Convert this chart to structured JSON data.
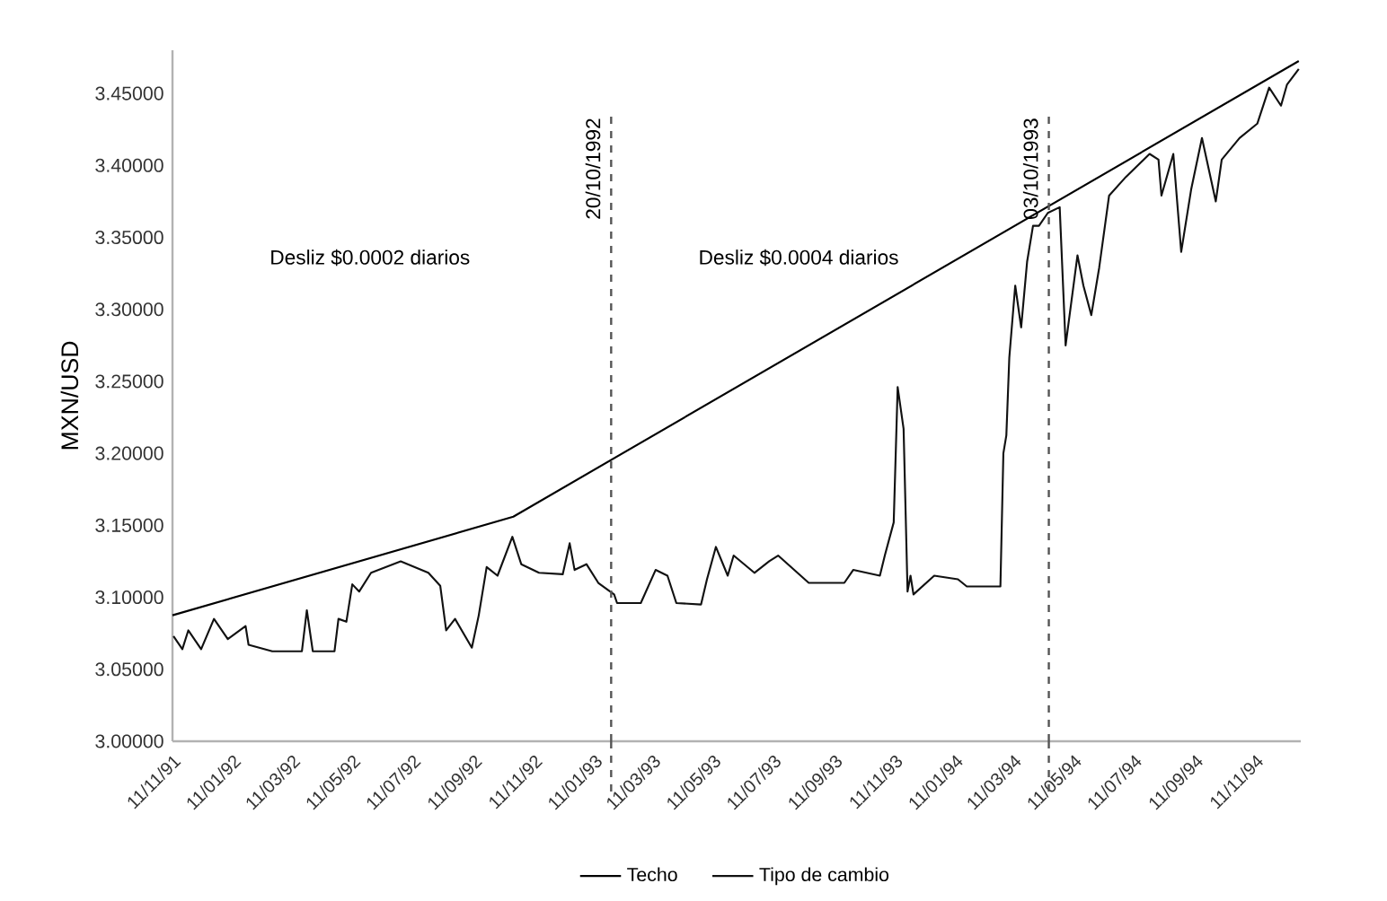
{
  "chart_data": {
    "type": "line",
    "ylabel": "MXN/USD",
    "xlim": [
      "1991-11-11",
      "1994-12-27"
    ],
    "ylim": [
      3.0,
      3.48
    ],
    "xticks": [
      {
        "value": "1991-11-11",
        "label": "11/11/91"
      },
      {
        "value": "1992-01-11",
        "label": "11/01/92"
      },
      {
        "value": "1992-03-11",
        "label": "11/03/92"
      },
      {
        "value": "1992-05-11",
        "label": "11/05/92"
      },
      {
        "value": "1992-07-11",
        "label": "11/07/92"
      },
      {
        "value": "1992-09-11",
        "label": "11/09/92"
      },
      {
        "value": "1992-11-11",
        "label": "11/11/92"
      },
      {
        "value": "1993-01-11",
        "label": "11/01/93"
      },
      {
        "value": "1993-03-11",
        "label": "11/03/93"
      },
      {
        "value": "1993-05-11",
        "label": "11/05/93"
      },
      {
        "value": "1993-07-11",
        "label": "11/07/93"
      },
      {
        "value": "1993-09-11",
        "label": "11/09/93"
      },
      {
        "value": "1993-11-11",
        "label": "11/11/93"
      },
      {
        "value": "1994-01-11",
        "label": "11/01/94"
      },
      {
        "value": "1994-03-11",
        "label": "11/03/94"
      },
      {
        "value": "1994-05-11",
        "label": "11/05/94"
      },
      {
        "value": "1994-07-11",
        "label": "11/07/94"
      },
      {
        "value": "1994-09-11",
        "label": "11/09/94"
      },
      {
        "value": "1994-11-11",
        "label": "11/11/94"
      }
    ],
    "yticks": [
      {
        "value": 3.0,
        "label": "3.00000"
      },
      {
        "value": 3.05,
        "label": "3.05000"
      },
      {
        "value": 3.1,
        "label": "3.10000"
      },
      {
        "value": 3.15,
        "label": "3.15000"
      },
      {
        "value": 3.2,
        "label": "3.20000"
      },
      {
        "value": 3.25,
        "label": "3.25000"
      },
      {
        "value": 3.3,
        "label": "3.30000"
      },
      {
        "value": 3.35,
        "label": "3.35000"
      },
      {
        "value": 3.4,
        "label": "3.40000"
      },
      {
        "value": 3.45,
        "label": "3.45000"
      }
    ],
    "legend": "bottom",
    "series": [
      {
        "name": "Techo",
        "color": "#000000",
        "x": [
          "1991-11-11",
          "1992-10-21",
          "1994-12-25"
        ],
        "values": [
          3.0875,
          3.156,
          3.4725
        ]
      },
      {
        "name": "Tipo de cambio",
        "color": "#111111",
        "x": [
          "1991-11-12",
          "1991-11-21",
          "1991-11-27",
          "1991-12-10",
          "1991-12-23",
          "1992-01-06",
          "1992-01-24",
          "1992-01-27",
          "1992-02-20",
          "1992-03-21",
          "1992-03-26",
          "1992-04-01",
          "1992-04-23",
          "1992-04-27",
          "1992-05-05",
          "1992-05-11",
          "1992-05-18",
          "1992-05-30",
          "1992-06-29",
          "1992-07-27",
          "1992-08-08",
          "1992-08-14",
          "1992-08-23",
          "1992-09-09",
          "1992-09-16",
          "1992-09-24",
          "1992-10-05",
          "1992-10-20",
          "1992-10-29",
          "1992-11-16",
          "1992-12-10",
          "1992-12-17",
          "1992-12-22",
          "1993-01-03",
          "1993-01-15",
          "1993-01-31",
          "1993-02-03",
          "1993-02-27",
          "1993-03-14",
          "1993-03-26",
          "1993-04-04",
          "1993-04-29",
          "1993-05-05",
          "1993-05-14",
          "1993-05-26",
          "1993-06-01",
          "1993-06-22",
          "1993-07-07",
          "1993-07-16",
          "1993-08-16",
          "1993-09-21",
          "1993-09-30",
          "1993-10-27",
          "1993-11-01",
          "1993-11-10",
          "1993-11-14",
          "1993-11-20",
          "1993-11-24",
          "1993-11-27",
          "1993-11-30",
          "1993-12-21",
          "1994-01-14",
          "1994-01-23",
          "1994-02-26",
          "1994-03-01",
          "1994-03-04",
          "1994-03-07",
          "1994-03-13",
          "1994-03-19",
          "1994-03-25",
          "1994-03-31",
          "1994-04-06",
          "1994-04-15",
          "1994-04-27",
          "1994-05-03",
          "1994-05-15",
          "1994-05-21",
          "1994-05-29",
          "1994-06-06",
          "1994-06-16",
          "1994-07-03",
          "1994-07-27",
          "1994-08-05",
          "1994-08-08",
          "1994-08-20",
          "1994-08-28",
          "1994-09-07",
          "1994-09-18",
          "1994-10-02",
          "1994-10-08",
          "1994-10-26",
          "1994-11-13",
          "1994-11-25",
          "1994-12-07",
          "1994-12-13",
          "1994-12-25"
        ],
        "values": [
          3.073,
          3.064,
          3.077,
          3.064,
          3.085,
          3.071,
          3.08,
          3.067,
          3.0625,
          3.0625,
          3.091,
          3.0625,
          3.0625,
          3.085,
          3.083,
          3.109,
          3.104,
          3.117,
          3.125,
          3.117,
          3.108,
          3.077,
          3.085,
          3.065,
          3.0875,
          3.121,
          3.115,
          3.142,
          3.123,
          3.117,
          3.116,
          3.1375,
          3.119,
          3.123,
          3.11,
          3.102,
          3.096,
          3.096,
          3.119,
          3.115,
          3.096,
          3.095,
          3.1125,
          3.135,
          3.115,
          3.129,
          3.117,
          3.125,
          3.129,
          3.11,
          3.11,
          3.119,
          3.115,
          3.129,
          3.152,
          3.246,
          3.217,
          3.104,
          3.115,
          3.102,
          3.115,
          3.1125,
          3.1075,
          3.1075,
          3.2,
          3.2125,
          3.2665,
          3.3165,
          3.2875,
          3.333,
          3.358,
          3.358,
          3.367,
          3.371,
          3.275,
          3.3375,
          3.3165,
          3.296,
          3.329,
          3.379,
          3.392,
          3.408,
          3.404,
          3.379,
          3.408,
          3.34,
          3.383,
          3.419,
          3.375,
          3.404,
          3.419,
          3.429,
          3.454,
          3.4415,
          3.456,
          3.467
        ]
      }
    ],
    "ref_lines": [
      {
        "axis": "x",
        "value": "1993-01-28",
        "label": "20/10/1992",
        "color": "#555555",
        "line_style": "dashed"
      },
      {
        "axis": "x",
        "value": "1994-04-16",
        "label": "03/10/1993",
        "color": "#555555",
        "line_style": "dashed"
      }
    ],
    "annotations": [
      "Desliz $0.0002 diarios",
      "Desliz $0.0004 diarios"
    ]
  }
}
